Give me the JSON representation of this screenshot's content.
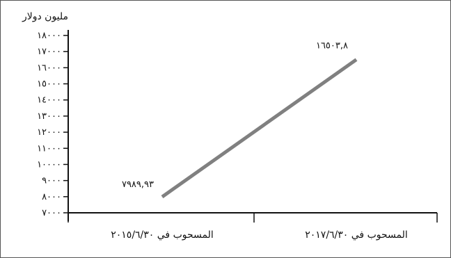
{
  "chart_data": {
    "type": "line",
    "title": "",
    "ylabel": "مليون دولار",
    "xlabel": "",
    "ylim": [
      7000,
      18000
    ],
    "y_ticks": [
      7000,
      8000,
      9000,
      10000,
      11000,
      12000,
      13000,
      14000,
      15000,
      16000,
      17000,
      18000
    ],
    "y_tick_labels": [
      "٧٠٠٠",
      "٨٠٠٠",
      "٩٠٠٠",
      "١٠٠٠٠",
      "١١٠٠٠",
      "١٢٠٠٠",
      "١٣٠٠٠",
      "١٤٠٠٠",
      "١٥٠٠٠",
      "١٦٠٠٠",
      "١٧٠٠٠",
      "١٨٠٠٠"
    ],
    "categories": [
      "المسحوب في ٢٠١٥/٦/٣٠",
      "المسحوب في ٢٠١٧/٦/٣٠"
    ],
    "series": [
      {
        "values": [
          7989.93,
          16503.8
        ],
        "value_labels": [
          "٧٩٨٩,٩٣",
          "١٦٥٠٣,٨"
        ],
        "color": "#808080"
      }
    ],
    "grid": false,
    "legend": "none"
  }
}
